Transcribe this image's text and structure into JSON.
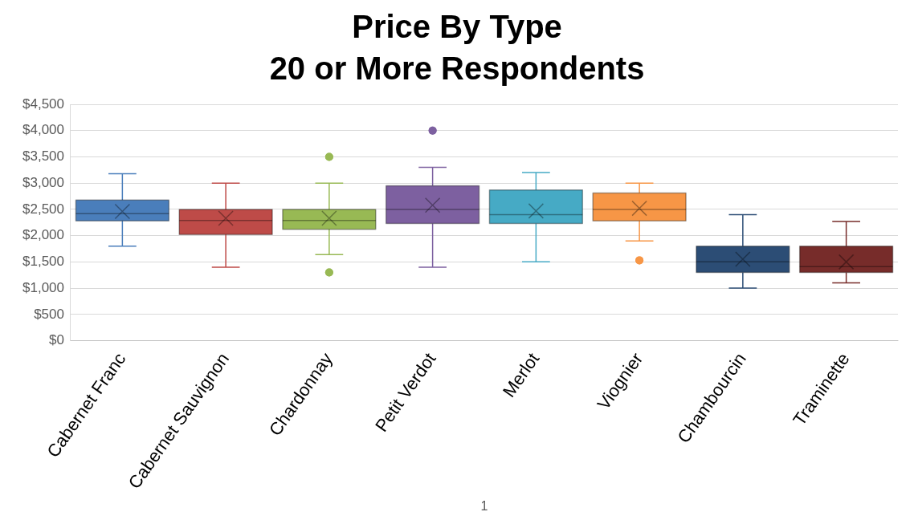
{
  "chart_data": {
    "type": "box",
    "title": [
      "Price By Type",
      "20 or More Respondents"
    ],
    "categories": [
      "Cabernet Franc",
      "Cabernet Sauvignon",
      "Chardonnay",
      "Petit Verdot",
      "Merlot",
      "Viognier",
      "Chambourcin",
      "Traminette"
    ],
    "colors": [
      "#4a7ebb",
      "#be4b48",
      "#98b954",
      "#7d60a0",
      "#46aac5",
      "#f79646",
      "#2c4d75",
      "#772c2a"
    ],
    "boxes": [
      {
        "low": 1800,
        "q1": 2280,
        "median": 2420,
        "q3": 2680,
        "high": 3180,
        "mean": 2460
      },
      {
        "low": 1400,
        "q1": 2020,
        "median": 2290,
        "q3": 2500,
        "high": 3000,
        "mean": 2330
      },
      {
        "low": 1640,
        "q1": 2120,
        "median": 2290,
        "q3": 2500,
        "high": 3000,
        "mean": 2330,
        "outliers": [
          3500,
          1300
        ]
      },
      {
        "low": 1400,
        "q1": 2230,
        "median": 2500,
        "q3": 2950,
        "high": 3300,
        "mean": 2580,
        "outliers": [
          4000
        ]
      },
      {
        "low": 1500,
        "q1": 2230,
        "median": 2400,
        "q3": 2870,
        "high": 3200,
        "mean": 2470
      },
      {
        "low": 1900,
        "q1": 2280,
        "median": 2500,
        "q3": 2810,
        "high": 3000,
        "mean": 2520,
        "outliers": [
          1530
        ]
      },
      {
        "low": 1000,
        "q1": 1300,
        "median": 1500,
        "q3": 1800,
        "high": 2400,
        "mean": 1550
      },
      {
        "low": 1100,
        "q1": 1300,
        "median": 1410,
        "q3": 1800,
        "high": 2270,
        "mean": 1500
      }
    ],
    "ylim": [
      0,
      4500
    ],
    "yticks": [
      {
        "value": 0,
        "label": "$0"
      },
      {
        "value": 500,
        "label": "$500"
      },
      {
        "value": 1000,
        "label": "$1,000"
      },
      {
        "value": 1500,
        "label": "$1,500"
      },
      {
        "value": 2000,
        "label": "$2,000"
      },
      {
        "value": 2500,
        "label": "$2,500"
      },
      {
        "value": 3000,
        "label": "$3,000"
      },
      {
        "value": 3500,
        "label": "$3,500"
      },
      {
        "value": 4000,
        "label": "$4,000"
      },
      {
        "value": 4500,
        "label": "$4,500"
      }
    ],
    "grid": "y",
    "legend": false,
    "marker": "circle",
    "annotations": [
      "1"
    ]
  }
}
